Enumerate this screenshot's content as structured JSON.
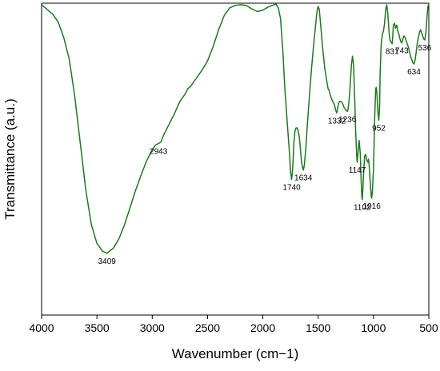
{
  "chart_data": {
    "type": "line",
    "xlabel": "Wavenumber (cm−1)",
    "ylabel": "Transmittance (a.u.)",
    "xlim": [
      4000,
      500
    ],
    "x_reversed": true,
    "x_ticks": [
      4000,
      3500,
      3000,
      2500,
      2000,
      1500,
      1000,
      500
    ],
    "y_ticks_shown": false,
    "ylim": [
      0,
      100
    ],
    "grid": false,
    "legend": "none",
    "line_color": "#1a7a1a",
    "series": [
      {
        "points": [
          [
            4000,
            99.5
          ],
          [
            3950,
            98
          ],
          [
            3900,
            96.5
          ],
          [
            3850,
            94
          ],
          [
            3800,
            89
          ],
          [
            3750,
            82
          ],
          [
            3700,
            70
          ],
          [
            3650,
            55
          ],
          [
            3600,
            40
          ],
          [
            3550,
            29
          ],
          [
            3500,
            23
          ],
          [
            3450,
            20.5
          ],
          [
            3409,
            19.8
          ],
          [
            3350,
            21.5
          ],
          [
            3300,
            24.5
          ],
          [
            3250,
            29
          ],
          [
            3200,
            34.5
          ],
          [
            3150,
            40
          ],
          [
            3100,
            45
          ],
          [
            3050,
            49.5
          ],
          [
            3000,
            53
          ],
          [
            2970,
            54.5
          ],
          [
            2943,
            55
          ],
          [
            2920,
            55.5
          ],
          [
            2900,
            57.5
          ],
          [
            2850,
            61
          ],
          [
            2800,
            64.5
          ],
          [
            2750,
            68.5
          ],
          [
            2700,
            71
          ],
          [
            2680,
            72.5
          ],
          [
            2650,
            73.5
          ],
          [
            2620,
            75
          ],
          [
            2600,
            76
          ],
          [
            2550,
            78.5
          ],
          [
            2500,
            81.5
          ],
          [
            2450,
            86
          ],
          [
            2400,
            91.5
          ],
          [
            2350,
            96
          ],
          [
            2300,
            98.5
          ],
          [
            2250,
            99.3
          ],
          [
            2200,
            99.5
          ],
          [
            2150,
            99.3
          ],
          [
            2100,
            98.2
          ],
          [
            2050,
            97.3
          ],
          [
            2000,
            97.8
          ],
          [
            1950,
            98.8
          ],
          [
            1900,
            99.5
          ],
          [
            1880,
            99.7
          ],
          [
            1860,
            98.5
          ],
          [
            1840,
            95
          ],
          [
            1820,
            85
          ],
          [
            1800,
            72
          ],
          [
            1780,
            62
          ],
          [
            1760,
            52
          ],
          [
            1750,
            46
          ],
          [
            1740,
            43.5
          ],
          [
            1730,
            47
          ],
          [
            1720,
            55
          ],
          [
            1710,
            59
          ],
          [
            1700,
            60
          ],
          [
            1690,
            60
          ],
          [
            1680,
            59
          ],
          [
            1670,
            57
          ],
          [
            1660,
            53
          ],
          [
            1650,
            49
          ],
          [
            1640,
            47
          ],
          [
            1634,
            46.5
          ],
          [
            1625,
            48
          ],
          [
            1610,
            54
          ],
          [
            1600,
            60
          ],
          [
            1580,
            70
          ],
          [
            1560,
            79
          ],
          [
            1540,
            87
          ],
          [
            1520,
            94
          ],
          [
            1510,
            97.5
          ],
          [
            1500,
            99
          ],
          [
            1490,
            98
          ],
          [
            1480,
            94
          ],
          [
            1460,
            86
          ],
          [
            1440,
            79
          ],
          [
            1420,
            74.5
          ],
          [
            1410,
            72.5
          ],
          [
            1400,
            72
          ],
          [
            1390,
            70.5
          ],
          [
            1380,
            69.5
          ],
          [
            1370,
            68.5
          ],
          [
            1360,
            68
          ],
          [
            1350,
            67
          ],
          [
            1340,
            65.5
          ],
          [
            1332,
            64.8
          ],
          [
            1325,
            66
          ],
          [
            1315,
            68
          ],
          [
            1305,
            68.5
          ],
          [
            1295,
            68.5
          ],
          [
            1285,
            68.2
          ],
          [
            1275,
            67.5
          ],
          [
            1265,
            66.5
          ],
          [
            1255,
            66
          ],
          [
            1245,
            65.5
          ],
          [
            1236,
            65.3
          ],
          [
            1230,
            66
          ],
          [
            1220,
            69
          ],
          [
            1210,
            74
          ],
          [
            1200,
            80
          ],
          [
            1190,
            83
          ],
          [
            1180,
            80
          ],
          [
            1170,
            70
          ],
          [
            1160,
            58
          ],
          [
            1150,
            50
          ],
          [
            1147,
            49
          ],
          [
            1140,
            52
          ],
          [
            1130,
            56
          ],
          [
            1120,
            52
          ],
          [
            1110,
            42
          ],
          [
            1105,
            38
          ],
          [
            1102,
            37
          ],
          [
            1098,
            39
          ],
          [
            1090,
            45
          ],
          [
            1080,
            51
          ],
          [
            1070,
            51.5
          ],
          [
            1060,
            49.5
          ],
          [
            1050,
            49
          ],
          [
            1045,
            50
          ],
          [
            1040,
            48.5
          ],
          [
            1030,
            43
          ],
          [
            1020,
            38
          ],
          [
            1016,
            37.5
          ],
          [
            1010,
            39.5
          ],
          [
            1000,
            47
          ],
          [
            990,
            62
          ],
          [
            980,
            72.5
          ],
          [
            975,
            73
          ],
          [
            970,
            71.5
          ],
          [
            960,
            65
          ],
          [
            952,
            62.5
          ],
          [
            945,
            67
          ],
          [
            940,
            78
          ],
          [
            930,
            87
          ],
          [
            920,
            90
          ],
          [
            910,
            91
          ],
          [
            900,
            93.5
          ],
          [
            890,
            98
          ],
          [
            880,
            99.5
          ],
          [
            870,
            96.5
          ],
          [
            860,
            91
          ],
          [
            850,
            88
          ],
          [
            840,
            87.5
          ],
          [
            831,
            87
          ],
          [
            825,
            90
          ],
          [
            820,
            93
          ],
          [
            810,
            93.5
          ],
          [
            800,
            92
          ],
          [
            790,
            93
          ],
          [
            780,
            91
          ],
          [
            770,
            90
          ],
          [
            760,
            88.5
          ],
          [
            750,
            87.5
          ],
          [
            743,
            87.3
          ],
          [
            735,
            88.5
          ],
          [
            725,
            89.5
          ],
          [
            715,
            89
          ],
          [
            705,
            88
          ],
          [
            695,
            87
          ],
          [
            685,
            86
          ],
          [
            675,
            84.5
          ],
          [
            665,
            83
          ],
          [
            655,
            82
          ],
          [
            645,
            81
          ],
          [
            634,
            80.5
          ],
          [
            625,
            81.5
          ],
          [
            615,
            84
          ],
          [
            605,
            87
          ],
          [
            595,
            89
          ],
          [
            585,
            90.5
          ],
          [
            575,
            91.5
          ],
          [
            560,
            90
          ],
          [
            550,
            89
          ],
          [
            545,
            88.5
          ],
          [
            536,
            88.2
          ],
          [
            525,
            91
          ],
          [
            515,
            96
          ],
          [
            508,
            99
          ],
          [
            500,
            99.5
          ]
        ]
      }
    ],
    "annotations": [
      {
        "text": "3409",
        "x": 3409,
        "y": 19.8
      },
      {
        "text": "2943",
        "x": 2943,
        "y": 55
      },
      {
        "text": "1740",
        "x": 1740,
        "y": 43.5
      },
      {
        "text": "1634",
        "x": 1634,
        "y": 46.5
      },
      {
        "text": "1332",
        "x": 1332,
        "y": 64.8
      },
      {
        "text": "1236",
        "x": 1236,
        "y": 65.3
      },
      {
        "text": "1147",
        "x": 1147,
        "y": 49
      },
      {
        "text": "1102",
        "x": 1102,
        "y": 37
      },
      {
        "text": "1016",
        "x": 1016,
        "y": 37.5
      },
      {
        "text": "952",
        "x": 952,
        "y": 62.5
      },
      {
        "text": "831",
        "x": 831,
        "y": 87
      },
      {
        "text": "743",
        "x": 743,
        "y": 87.3
      },
      {
        "text": "634",
        "x": 634,
        "y": 80.5
      },
      {
        "text": "536",
        "x": 536,
        "y": 88.2
      }
    ]
  }
}
